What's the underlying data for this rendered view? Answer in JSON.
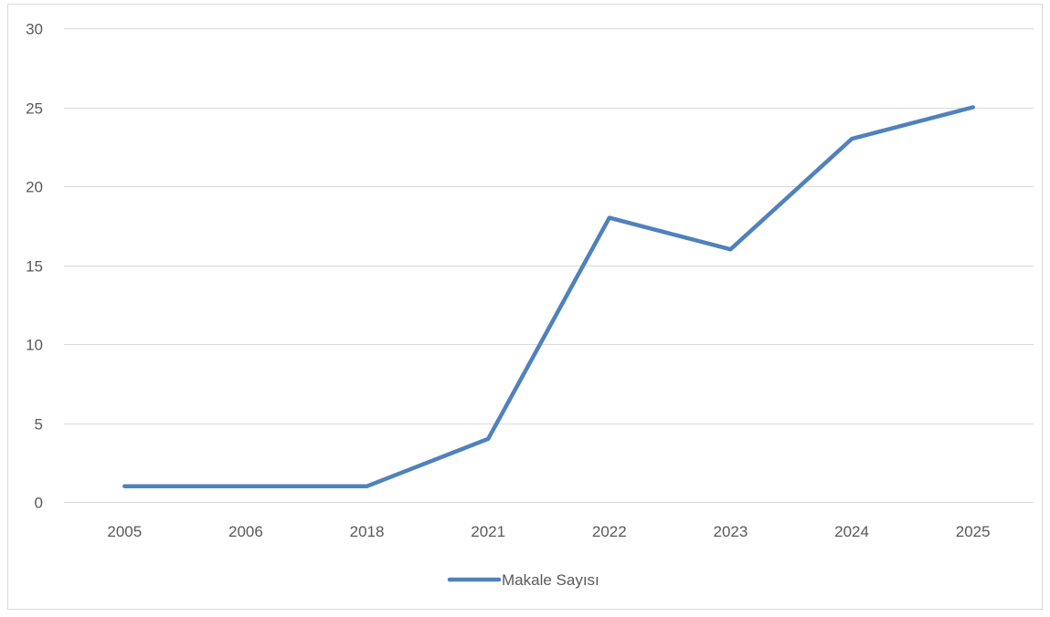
{
  "chart_data": {
    "type": "line",
    "title": "",
    "xlabel": "",
    "ylabel": "",
    "categories": [
      "2005",
      "2006",
      "2018",
      "2021",
      "2022",
      "2023",
      "2024",
      "2025"
    ],
    "series": [
      {
        "name": "Makale Sayısı",
        "color": "#4f81bd",
        "values": [
          1,
          1,
          1,
          4,
          18,
          16,
          23,
          25
        ]
      }
    ],
    "ylim": [
      0,
      30
    ],
    "yticks": [
      0,
      5,
      10,
      15,
      20,
      25,
      30
    ],
    "grid": true,
    "legend": "bottom"
  }
}
